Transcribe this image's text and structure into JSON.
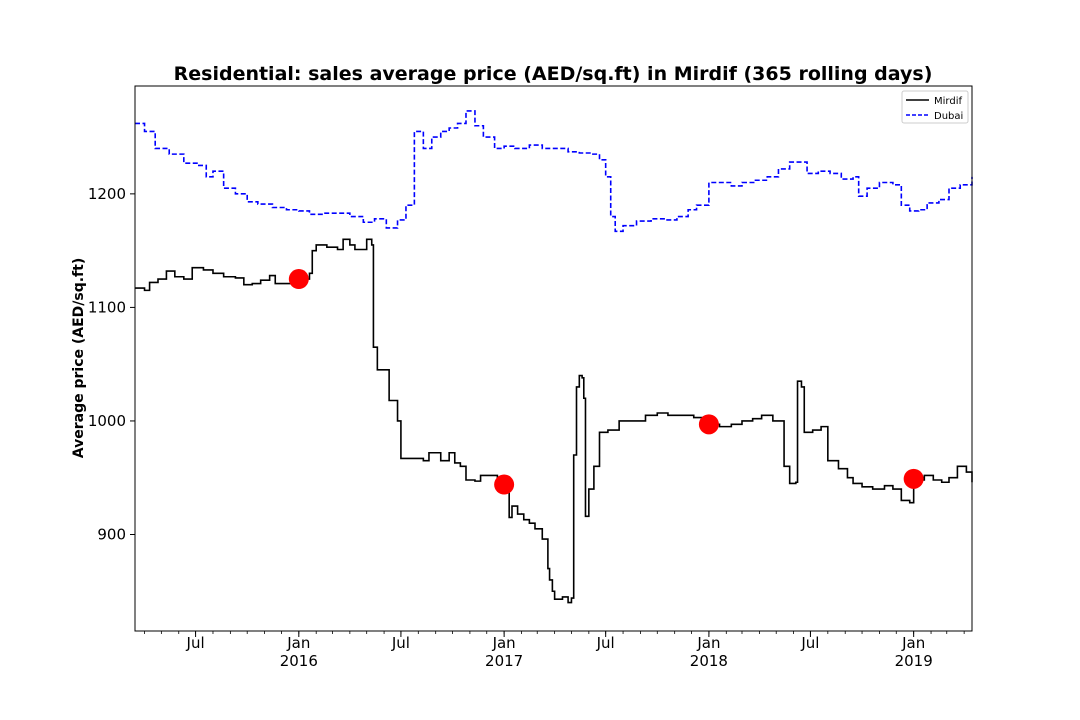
{
  "chart_data": {
    "type": "line",
    "title": "Residential: sales average price (AED/sq.ft) in Mirdif (365 rolling days)",
    "xlabel": "",
    "ylabel": "Average price (AED/sq.ft)",
    "xlim": [
      "2015-03-15",
      "2019-04-15"
    ],
    "ylim": [
      815,
      1295
    ],
    "y_ticks": [
      900,
      1000,
      1100,
      1200
    ],
    "x_ticks": [
      {
        "date": "2015-07-01",
        "label": "Jul",
        "year": ""
      },
      {
        "date": "2016-01-01",
        "label": "Jan",
        "year": "2016"
      },
      {
        "date": "2016-07-01",
        "label": "Jul",
        "year": ""
      },
      {
        "date": "2017-01-01",
        "label": "Jan",
        "year": "2017"
      },
      {
        "date": "2017-07-01",
        "label": "Jul",
        "year": ""
      },
      {
        "date": "2018-01-01",
        "label": "Jan",
        "year": "2018"
      },
      {
        "date": "2018-07-01",
        "label": "Jul",
        "year": ""
      },
      {
        "date": "2019-01-01",
        "label": "Jan",
        "year": "2019"
      }
    ],
    "grid": false,
    "legend_position": "top-right",
    "series": [
      {
        "name": "Mirdif",
        "color": "#000000",
        "style": "solid",
        "points": [
          [
            "2015-03-15",
            1117
          ],
          [
            "2015-04-01",
            1115
          ],
          [
            "2015-04-10",
            1122
          ],
          [
            "2015-04-25",
            1125
          ],
          [
            "2015-05-10",
            1132
          ],
          [
            "2015-05-25",
            1127
          ],
          [
            "2015-06-10",
            1125
          ],
          [
            "2015-06-25",
            1135
          ],
          [
            "2015-07-15",
            1133
          ],
          [
            "2015-08-01",
            1130
          ],
          [
            "2015-08-20",
            1127
          ],
          [
            "2015-09-10",
            1126
          ],
          [
            "2015-09-25",
            1120
          ],
          [
            "2015-10-10",
            1121
          ],
          [
            "2015-10-25",
            1124
          ],
          [
            "2015-11-10",
            1128
          ],
          [
            "2015-11-20",
            1121
          ],
          [
            "2015-12-15",
            1121
          ],
          [
            "2016-01-01",
            1125
          ],
          [
            "2016-01-20",
            1130
          ],
          [
            "2016-01-25",
            1150
          ],
          [
            "2016-02-01",
            1155
          ],
          [
            "2016-02-20",
            1153
          ],
          [
            "2016-03-10",
            1151
          ],
          [
            "2016-03-20",
            1160
          ],
          [
            "2016-04-01",
            1155
          ],
          [
            "2016-04-10",
            1151
          ],
          [
            "2016-04-25",
            1151
          ],
          [
            "2016-05-01",
            1160
          ],
          [
            "2016-05-10",
            1155
          ],
          [
            "2016-05-13",
            1065
          ],
          [
            "2016-05-20",
            1045
          ],
          [
            "2016-06-05",
            1045
          ],
          [
            "2016-06-10",
            1018
          ],
          [
            "2016-06-25",
            1000
          ],
          [
            "2016-07-01",
            967
          ],
          [
            "2016-07-15",
            967
          ],
          [
            "2016-08-01",
            967
          ],
          [
            "2016-08-10",
            965
          ],
          [
            "2016-08-20",
            972
          ],
          [
            "2016-09-10",
            965
          ],
          [
            "2016-09-25",
            972
          ],
          [
            "2016-10-05",
            963
          ],
          [
            "2016-10-15",
            960
          ],
          [
            "2016-10-25",
            948
          ],
          [
            "2016-11-10",
            947
          ],
          [
            "2016-11-20",
            952
          ],
          [
            "2016-12-05",
            952
          ],
          [
            "2016-12-20",
            946
          ],
          [
            "2017-01-01",
            944
          ],
          [
            "2017-01-10",
            915
          ],
          [
            "2017-01-15",
            925
          ],
          [
            "2017-01-25",
            918
          ],
          [
            "2017-02-05",
            913
          ],
          [
            "2017-02-15",
            910
          ],
          [
            "2017-02-25",
            905
          ],
          [
            "2017-03-10",
            896
          ],
          [
            "2017-03-20",
            870
          ],
          [
            "2017-03-23",
            860
          ],
          [
            "2017-03-28",
            850
          ],
          [
            "2017-04-01",
            843
          ],
          [
            "2017-04-15",
            845
          ],
          [
            "2017-04-25",
            840
          ],
          [
            "2017-05-01",
            844
          ],
          [
            "2017-05-05",
            970
          ],
          [
            "2017-05-10",
            1030
          ],
          [
            "2017-05-15",
            1040
          ],
          [
            "2017-05-20",
            1038
          ],
          [
            "2017-05-23",
            1020
          ],
          [
            "2017-05-26",
            916
          ],
          [
            "2017-06-01",
            940
          ],
          [
            "2017-06-10",
            960
          ],
          [
            "2017-06-20",
            990
          ],
          [
            "2017-07-05",
            992
          ],
          [
            "2017-07-25",
            1000
          ],
          [
            "2017-08-15",
            1000
          ],
          [
            "2017-09-10",
            1005
          ],
          [
            "2017-10-01",
            1007
          ],
          [
            "2017-10-20",
            1005
          ],
          [
            "2017-11-10",
            1005
          ],
          [
            "2017-12-05",
            1003
          ],
          [
            "2018-01-01",
            997
          ],
          [
            "2018-01-20",
            995
          ],
          [
            "2018-02-10",
            997
          ],
          [
            "2018-03-01",
            1000
          ],
          [
            "2018-03-20",
            1002
          ],
          [
            "2018-04-05",
            1005
          ],
          [
            "2018-04-25",
            1000
          ],
          [
            "2018-05-10",
            1000
          ],
          [
            "2018-05-15",
            960
          ],
          [
            "2018-05-25",
            945
          ],
          [
            "2018-06-05",
            946
          ],
          [
            "2018-06-08",
            1035
          ],
          [
            "2018-06-15",
            1030
          ],
          [
            "2018-06-20",
            990
          ],
          [
            "2018-07-05",
            992
          ],
          [
            "2018-07-20",
            995
          ],
          [
            "2018-08-01",
            965
          ],
          [
            "2018-08-20",
            958
          ],
          [
            "2018-09-05",
            950
          ],
          [
            "2018-09-15",
            945
          ],
          [
            "2018-10-01",
            942
          ],
          [
            "2018-10-20",
            940
          ],
          [
            "2018-11-10",
            943
          ],
          [
            "2018-11-25",
            940
          ],
          [
            "2018-12-10",
            930
          ],
          [
            "2018-12-25",
            928
          ],
          [
            "2019-01-01",
            948
          ],
          [
            "2019-01-20",
            952
          ],
          [
            "2019-02-05",
            948
          ],
          [
            "2019-02-20",
            946
          ],
          [
            "2019-03-05",
            950
          ],
          [
            "2019-03-20",
            960
          ],
          [
            "2019-04-05",
            955
          ],
          [
            "2019-04-15",
            946
          ]
        ]
      },
      {
        "name": "Dubai",
        "color": "#0000ff",
        "style": "dashed",
        "points": [
          [
            "2015-03-15",
            1262
          ],
          [
            "2015-04-01",
            1255
          ],
          [
            "2015-04-20",
            1240
          ],
          [
            "2015-05-15",
            1235
          ],
          [
            "2015-06-10",
            1227
          ],
          [
            "2015-07-05",
            1225
          ],
          [
            "2015-07-20",
            1215
          ],
          [
            "2015-08-01",
            1220
          ],
          [
            "2015-08-20",
            1205
          ],
          [
            "2015-09-10",
            1200
          ],
          [
            "2015-10-01",
            1193
          ],
          [
            "2015-10-20",
            1191
          ],
          [
            "2015-11-15",
            1188
          ],
          [
            "2015-12-10",
            1186
          ],
          [
            "2016-01-01",
            1185
          ],
          [
            "2016-01-20",
            1182
          ],
          [
            "2016-02-15",
            1183
          ],
          [
            "2016-03-10",
            1183
          ],
          [
            "2016-04-01",
            1180
          ],
          [
            "2016-04-25",
            1175
          ],
          [
            "2016-05-15",
            1178
          ],
          [
            "2016-06-05",
            1170
          ],
          [
            "2016-06-25",
            1177
          ],
          [
            "2016-07-10",
            1190
          ],
          [
            "2016-07-25",
            1255
          ],
          [
            "2016-08-10",
            1240
          ],
          [
            "2016-08-25",
            1250
          ],
          [
            "2016-09-10",
            1255
          ],
          [
            "2016-09-25",
            1258
          ],
          [
            "2016-10-10",
            1262
          ],
          [
            "2016-10-25",
            1273
          ],
          [
            "2016-11-10",
            1260
          ],
          [
            "2016-11-25",
            1250
          ],
          [
            "2016-12-15",
            1240
          ],
          [
            "2017-01-01",
            1242
          ],
          [
            "2017-01-20",
            1240
          ],
          [
            "2017-02-15",
            1243
          ],
          [
            "2017-03-10",
            1240
          ],
          [
            "2017-04-01",
            1240
          ],
          [
            "2017-04-25",
            1237
          ],
          [
            "2017-05-15",
            1236
          ],
          [
            "2017-06-05",
            1235
          ],
          [
            "2017-06-20",
            1230
          ],
          [
            "2017-07-01",
            1215
          ],
          [
            "2017-07-10",
            1180
          ],
          [
            "2017-07-18",
            1167
          ],
          [
            "2017-08-01",
            1172
          ],
          [
            "2017-08-25",
            1176
          ],
          [
            "2017-09-20",
            1178
          ],
          [
            "2017-10-15",
            1177
          ],
          [
            "2017-11-05",
            1180
          ],
          [
            "2017-11-25",
            1186
          ],
          [
            "2017-12-10",
            1190
          ],
          [
            "2018-01-01",
            1210
          ],
          [
            "2018-01-20",
            1210
          ],
          [
            "2018-02-10",
            1207
          ],
          [
            "2018-03-01",
            1210
          ],
          [
            "2018-03-25",
            1212
          ],
          [
            "2018-04-15",
            1215
          ],
          [
            "2018-05-05",
            1222
          ],
          [
            "2018-05-25",
            1228
          ],
          [
            "2018-06-15",
            1228
          ],
          [
            "2018-06-25",
            1218
          ],
          [
            "2018-07-15",
            1220
          ],
          [
            "2018-08-05",
            1218
          ],
          [
            "2018-08-25",
            1213
          ],
          [
            "2018-09-15",
            1215
          ],
          [
            "2018-09-25",
            1198
          ],
          [
            "2018-10-10",
            1205
          ],
          [
            "2018-11-01",
            1210
          ],
          [
            "2018-11-25",
            1208
          ],
          [
            "2018-12-10",
            1190
          ],
          [
            "2018-12-25",
            1185
          ],
          [
            "2019-01-10",
            1186
          ],
          [
            "2019-01-25",
            1192
          ],
          [
            "2019-02-15",
            1195
          ],
          [
            "2019-03-05",
            1205
          ],
          [
            "2019-03-25",
            1208
          ],
          [
            "2019-04-15",
            1215
          ]
        ]
      }
    ],
    "markers": {
      "color": "#ff0000",
      "points": [
        [
          "2016-01-01",
          1125
        ],
        [
          "2017-01-01",
          944
        ],
        [
          "2018-01-01",
          997
        ],
        [
          "2019-01-01",
          949
        ]
      ]
    }
  }
}
